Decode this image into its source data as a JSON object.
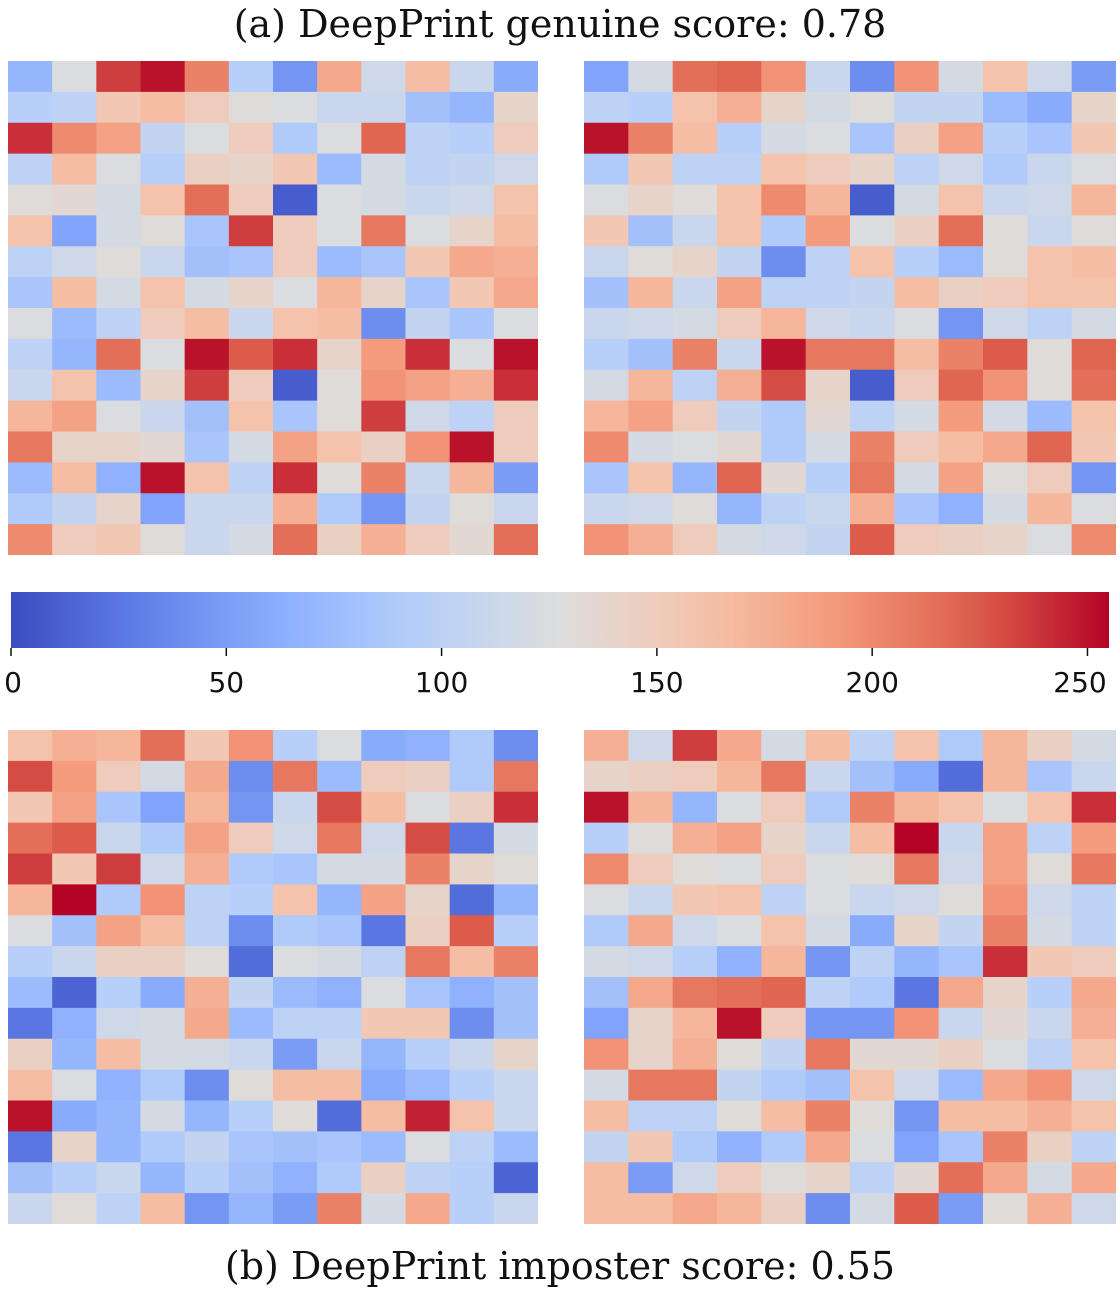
{
  "captions": {
    "top": "(a) DeepPrint genuine score: 0.78",
    "bottom": "(b) DeepPrint imposter score: 0.55"
  },
  "colors": {
    "colormap": "coolwarm",
    "low": "#3b4cc0",
    "mid": "#dddcdc",
    "high": "#b40426",
    "background": "#ffffff"
  },
  "chart_data": {
    "type": "heatmap",
    "colormap": "coolwarm",
    "vmin": 0,
    "vmax": 255,
    "colorbar_ticks": [
      "0",
      "50",
      "100",
      "150",
      "200",
      "250"
    ],
    "colorbar_tick_values": [
      0,
      50,
      100,
      150,
      200,
      250
    ],
    "matrices": [
      {
        "group": "genuine",
        "rows": [
          [
            70,
            125,
            235,
            250,
            205,
            95,
            45,
            180,
            115,
            165,
            110,
            60
          ],
          [
            95,
            100,
            155,
            165,
            150,
            130,
            125,
            110,
            110,
            80,
            70,
            140
          ],
          [
            240,
            200,
            185,
            105,
            125,
            150,
            90,
            125,
            220,
            100,
            95,
            150
          ],
          [
            100,
            165,
            125,
            95,
            145,
            140,
            155,
            75,
            120,
            100,
            105,
            115
          ],
          [
            130,
            135,
            120,
            160,
            215,
            150,
            10,
            125,
            120,
            110,
            115,
            160
          ],
          [
            160,
            55,
            120,
            130,
            85,
            235,
            150,
            125,
            210,
            125,
            140,
            165
          ],
          [
            100,
            115,
            130,
            110,
            80,
            85,
            150,
            75,
            85,
            155,
            180,
            175
          ],
          [
            85,
            165,
            120,
            160,
            120,
            140,
            125,
            170,
            140,
            85,
            155,
            180
          ],
          [
            125,
            75,
            100,
            150,
            165,
            110,
            160,
            165,
            40,
            105,
            85,
            125
          ],
          [
            100,
            70,
            215,
            125,
            250,
            225,
            240,
            140,
            190,
            240,
            125,
            250
          ],
          [
            110,
            160,
            75,
            140,
            235,
            150,
            10,
            130,
            195,
            185,
            175,
            240
          ],
          [
            170,
            185,
            125,
            110,
            80,
            160,
            85,
            130,
            235,
            115,
            100,
            150
          ],
          [
            210,
            140,
            140,
            135,
            85,
            120,
            185,
            160,
            145,
            195,
            250,
            150
          ],
          [
            75,
            165,
            65,
            250,
            160,
            100,
            240,
            130,
            205,
            110,
            170,
            50
          ],
          [
            90,
            105,
            140,
            55,
            110,
            110,
            175,
            90,
            45,
            105,
            130,
            110
          ],
          [
            200,
            150,
            155,
            130,
            110,
            120,
            215,
            145,
            175,
            150,
            135,
            215
          ]
        ]
      },
      {
        "group": "genuine",
        "rows": [
          [
            55,
            120,
            215,
            220,
            195,
            110,
            40,
            195,
            120,
            160,
            115,
            50
          ],
          [
            100,
            95,
            160,
            175,
            140,
            120,
            130,
            105,
            105,
            75,
            60,
            140
          ],
          [
            250,
            205,
            165,
            95,
            120,
            125,
            85,
            145,
            185,
            95,
            85,
            155
          ],
          [
            90,
            155,
            100,
            100,
            160,
            150,
            140,
            100,
            115,
            90,
            110,
            125
          ],
          [
            125,
            140,
            130,
            160,
            200,
            170,
            10,
            120,
            160,
            110,
            115,
            170
          ],
          [
            155,
            80,
            110,
            160,
            90,
            190,
            125,
            145,
            215,
            130,
            110,
            130
          ],
          [
            110,
            130,
            140,
            105,
            40,
            100,
            160,
            95,
            75,
            130,
            160,
            165
          ],
          [
            80,
            170,
            110,
            185,
            100,
            100,
            105,
            165,
            145,
            150,
            160,
            160
          ],
          [
            110,
            115,
            120,
            150,
            170,
            115,
            110,
            125,
            45,
            115,
            100,
            120
          ],
          [
            95,
            80,
            205,
            110,
            250,
            210,
            210,
            165,
            205,
            225,
            130,
            220
          ],
          [
            120,
            170,
            100,
            175,
            230,
            140,
            10,
            150,
            220,
            195,
            130,
            215
          ],
          [
            170,
            185,
            150,
            105,
            90,
            135,
            100,
            120,
            190,
            120,
            75,
            160
          ],
          [
            200,
            120,
            125,
            135,
            90,
            120,
            205,
            150,
            165,
            180,
            220,
            155
          ],
          [
            85,
            160,
            70,
            220,
            135,
            95,
            210,
            120,
            185,
            130,
            150,
            45
          ],
          [
            110,
            115,
            130,
            70,
            100,
            110,
            175,
            85,
            65,
            120,
            170,
            125
          ],
          [
            195,
            175,
            150,
            120,
            115,
            105,
            225,
            150,
            145,
            140,
            125,
            200
          ]
        ]
      },
      {
        "group": "imposter",
        "rows": [
          [
            160,
            175,
            170,
            215,
            155,
            195,
            95,
            125,
            60,
            65,
            90,
            40
          ],
          [
            230,
            190,
            150,
            120,
            180,
            40,
            210,
            75,
            150,
            145,
            90,
            210
          ],
          [
            155,
            185,
            85,
            55,
            170,
            45,
            110,
            230,
            165,
            125,
            145,
            240
          ],
          [
            215,
            225,
            110,
            90,
            185,
            150,
            115,
            210,
            115,
            230,
            25,
            120
          ],
          [
            235,
            155,
            235,
            115,
            175,
            90,
            85,
            120,
            120,
            205,
            140,
            130
          ],
          [
            170,
            255,
            90,
            195,
            100,
            95,
            160,
            70,
            185,
            140,
            20,
            70
          ],
          [
            125,
            80,
            185,
            165,
            100,
            40,
            90,
            85,
            25,
            145,
            225,
            95
          ],
          [
            95,
            110,
            145,
            145,
            130,
            20,
            125,
            120,
            100,
            210,
            165,
            205
          ],
          [
            75,
            15,
            95,
            60,
            175,
            105,
            75,
            65,
            125,
            85,
            65,
            80
          ],
          [
            25,
            65,
            115,
            120,
            180,
            75,
            100,
            100,
            155,
            155,
            40,
            80
          ],
          [
            145,
            70,
            165,
            120,
            120,
            110,
            50,
            110,
            70,
            95,
            110,
            140
          ],
          [
            165,
            125,
            65,
            90,
            40,
            130,
            165,
            165,
            60,
            75,
            95,
            110
          ],
          [
            250,
            60,
            70,
            120,
            70,
            95,
            130,
            20,
            165,
            245,
            160,
            110
          ],
          [
            25,
            140,
            70,
            90,
            105,
            85,
            80,
            85,
            75,
            125,
            100,
            75
          ],
          [
            80,
            95,
            110,
            70,
            95,
            80,
            65,
            90,
            145,
            100,
            95,
            15
          ],
          [
            110,
            130,
            100,
            165,
            45,
            70,
            50,
            205,
            120,
            180,
            95,
            110
          ]
        ]
      },
      {
        "group": "imposter",
        "rows": [
          [
            175,
            115,
            235,
            180,
            120,
            165,
            100,
            160,
            90,
            170,
            145,
            120
          ],
          [
            140,
            145,
            150,
            170,
            210,
            110,
            80,
            60,
            20,
            170,
            85,
            110
          ],
          [
            250,
            170,
            70,
            125,
            150,
            90,
            205,
            170,
            160,
            125,
            160,
            240
          ],
          [
            95,
            130,
            175,
            185,
            140,
            110,
            165,
            255,
            110,
            185,
            100,
            190
          ],
          [
            200,
            150,
            130,
            125,
            150,
            125,
            130,
            210,
            115,
            185,
            130,
            210
          ],
          [
            125,
            110,
            155,
            160,
            100,
            125,
            110,
            115,
            130,
            195,
            115,
            100
          ],
          [
            90,
            180,
            115,
            125,
            160,
            120,
            60,
            140,
            105,
            205,
            120,
            100
          ],
          [
            120,
            115,
            95,
            65,
            170,
            45,
            100,
            70,
            85,
            240,
            155,
            150
          ],
          [
            80,
            180,
            210,
            215,
            220,
            100,
            90,
            25,
            180,
            140,
            95,
            180
          ],
          [
            55,
            140,
            170,
            250,
            150,
            45,
            45,
            195,
            110,
            135,
            110,
            175
          ],
          [
            195,
            140,
            175,
            130,
            105,
            210,
            135,
            135,
            145,
            125,
            100,
            160
          ],
          [
            120,
            210,
            210,
            105,
            90,
            80,
            160,
            115,
            75,
            180,
            195,
            115
          ],
          [
            165,
            100,
            100,
            130,
            165,
            205,
            130,
            45,
            165,
            165,
            175,
            160
          ],
          [
            105,
            155,
            90,
            65,
            90,
            180,
            125,
            55,
            85,
            205,
            145,
            100
          ],
          [
            165,
            50,
            115,
            150,
            130,
            140,
            100,
            135,
            215,
            180,
            120,
            180
          ],
          [
            165,
            165,
            180,
            170,
            145,
            40,
            120,
            225,
            50,
            130,
            175,
            115
          ]
        ]
      }
    ]
  }
}
